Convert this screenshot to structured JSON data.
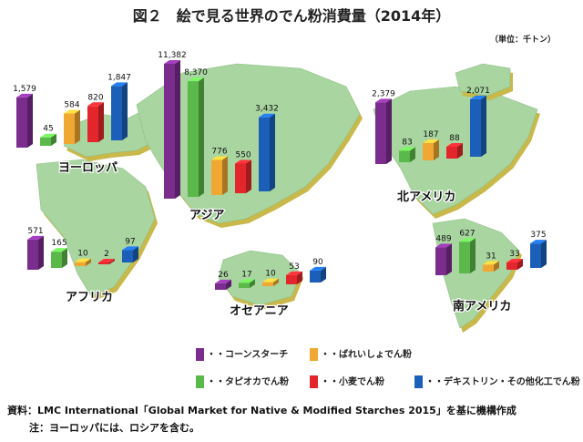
{
  "title": "図２　絵で見る世界のでん粉消費量（2014年）",
  "unit": "（単位：千トン）",
  "colors": {
    "land": "#a8d5a0",
    "land_shadow": "#c9b84a",
    "corn": "#7b2d8e",
    "tapioca": "#5bb84a",
    "potato": "#f0a832",
    "wheat": "#e3262b",
    "dextrin": "#1b5fb8"
  },
  "legend": [
    {
      "key": "corn",
      "label": "・・コーンスターチ"
    },
    {
      "key": "potato",
      "label": "・・ばれいしょでん粉"
    },
    {
      "key": "tapioca",
      "label": "・・タピオカでん粉"
    },
    {
      "key": "wheat",
      "label": "・・小麦でん粉"
    },
    {
      "key": "dextrin",
      "label": "・・デキストリン・その他化工でん粉"
    }
  ],
  "source": "資料：LMC International「Global Market for Native & Modified Starches 2015」を基に機構作成",
  "note": "注：ヨーロッパには、ロシアを含む。",
  "chart_data": {
    "type": "bar",
    "unit": "千トン",
    "series_order": [
      "corn",
      "tapioca",
      "potato",
      "wheat",
      "dextrin"
    ],
    "regions": [
      {
        "name": "ヨーロッパ",
        "values": {
          "corn": 1579,
          "tapioca": 45,
          "potato": 584,
          "wheat": 820,
          "dextrin": 1847
        }
      },
      {
        "name": "アジア",
        "values": {
          "corn": 11382,
          "tapioca": 8370,
          "potato": 776,
          "wheat": 550,
          "dextrin": 3432
        }
      },
      {
        "name": "北アメリカ",
        "values": {
          "corn": 2379,
          "tapioca": 83,
          "potato": 187,
          "wheat": 88,
          "dextrin": 2071
        }
      },
      {
        "name": "アフリカ",
        "values": {
          "corn": 571,
          "tapioca": 165,
          "potato": 10,
          "wheat": 2,
          "dextrin": 97
        }
      },
      {
        "name": "オセアニア",
        "values": {
          "corn": 26,
          "tapioca": 17,
          "potato": 10,
          "wheat": 53,
          "dextrin": 90
        }
      },
      {
        "name": "南アメリカ",
        "values": {
          "corn": 489,
          "tapioca": 627,
          "potato": 31,
          "wheat": 33,
          "dextrin": 375
        }
      }
    ]
  }
}
